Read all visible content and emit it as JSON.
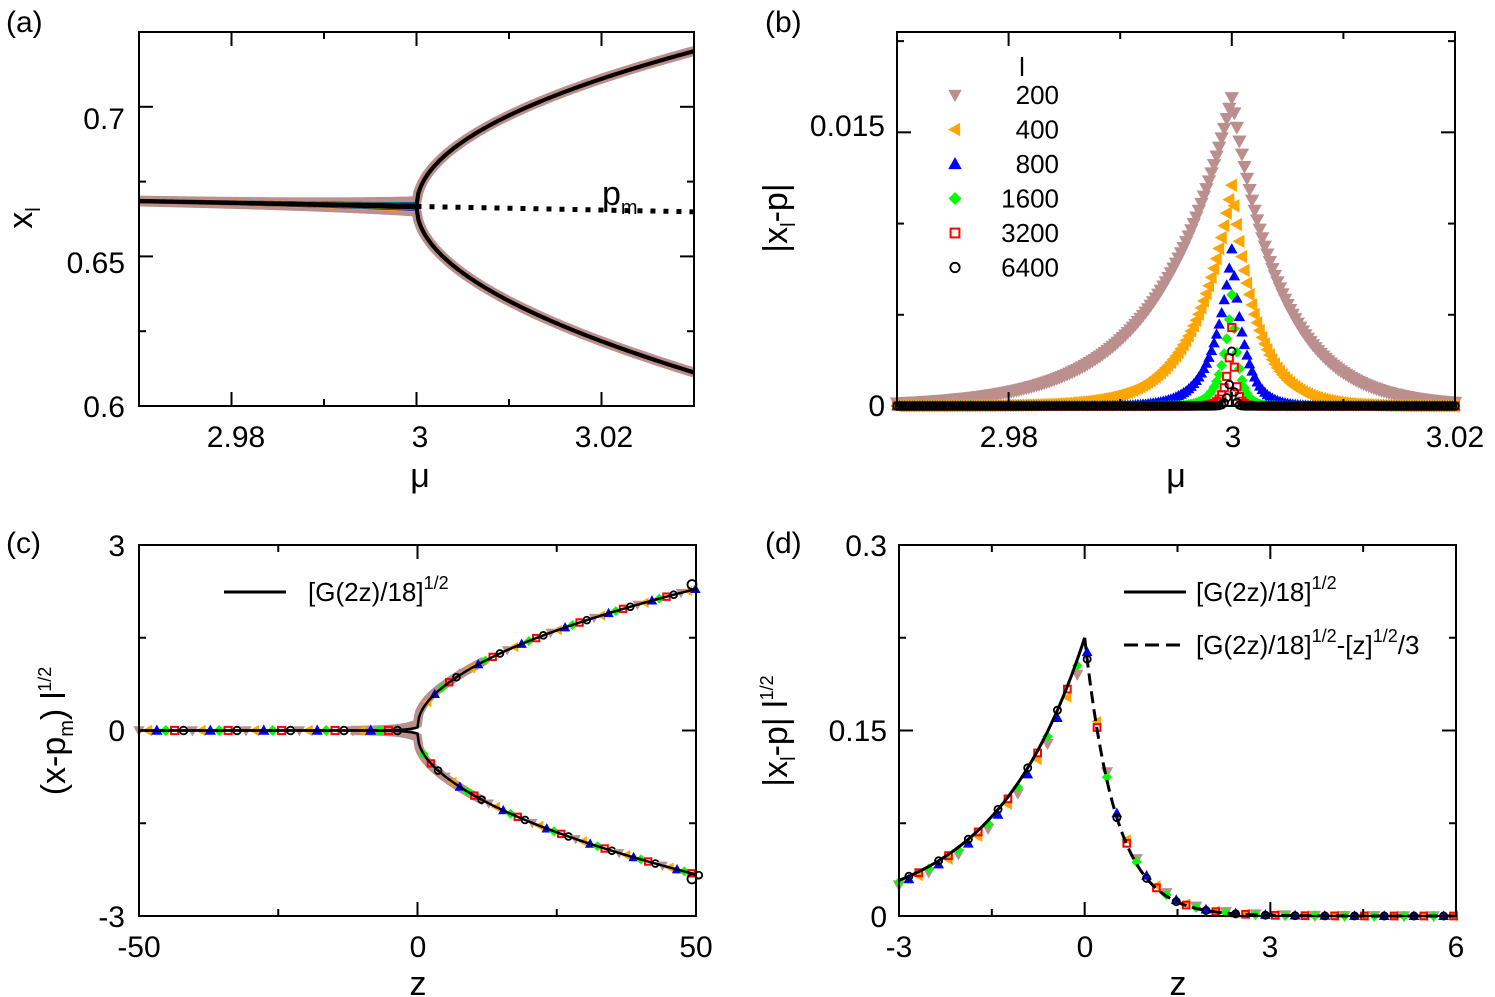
{
  "figure": {
    "panels": [
      "(a)",
      "(b)",
      "(c)",
      "(d)"
    ]
  },
  "chart_data": [
    {
      "panel": "(a)",
      "type": "scatter",
      "xlabel": "μ",
      "ylabel": "x_l",
      "xlim": [
        2.97,
        3.03
      ],
      "ylim": [
        0.6,
        0.725
      ],
      "xticks": [
        "2.98",
        "3",
        "3.02"
      ],
      "yticks": [
        "0.6",
        "0.65",
        "0.7"
      ],
      "annotation": "p_m",
      "series": [
        {
          "name": "200",
          "color": "#bc8f8f",
          "width": 0.00082
        },
        {
          "name": "400",
          "color": "#ffa500",
          "width": 0.00041
        },
        {
          "name": "800",
          "color": "#0000ff",
          "width": 0.000205
        },
        {
          "name": "1600",
          "color": "#00ff00",
          "width": 0.0001
        },
        {
          "name": "3200",
          "color": "#ff0000",
          "width": 5e-05
        },
        {
          "name": "6400",
          "color": "#000000",
          "width": 2.5e-05
        }
      ],
      "curve": {
        "mu_c": 3.0,
        "pm_at_3": 0.6667,
        "pm_slope": -0.06,
        "branch_sqrt_coeff": 0.31,
        "branch_lin": -0.06
      },
      "dotted_line": {
        "from_mu": 3.0,
        "to_mu": 3.03
      }
    },
    {
      "panel": "(b)",
      "type": "scatter",
      "xlabel": "μ",
      "ylabel": "|x_l-p|",
      "xlim": [
        2.97,
        3.02
      ],
      "ylim": [
        0,
        0.0205
      ],
      "xticks": [
        "2.98",
        "3",
        "3.02"
      ],
      "yticks": [
        "0",
        "0.015"
      ],
      "legend_title": "l",
      "legend_position": "top-left",
      "series": [
        {
          "name": "200",
          "l": 200,
          "color": "#bc8f8f",
          "marker": "triangle-down"
        },
        {
          "name": "400",
          "l": 400,
          "color": "#ffa500",
          "marker": "triangle-left"
        },
        {
          "name": "800",
          "l": 800,
          "color": "#0000ff",
          "marker": "triangle-up"
        },
        {
          "name": "1600",
          "l": 1600,
          "color": "#00ff00",
          "marker": "diamond"
        },
        {
          "name": "3200",
          "l": 3200,
          "color": "#ff0000",
          "marker": "square"
        },
        {
          "name": "6400",
          "l": 6400,
          "color": "#000000",
          "marker": "circle"
        }
      ],
      "peaks": {
        "200": 0.0169,
        "400": 0.0121,
        "800": 0.0086,
        "1600": 0.0061,
        "3200": 0.0043,
        "6400": 0.003
      }
    },
    {
      "panel": "(c)",
      "type": "scatter",
      "xlabel": "z",
      "ylabel": "(x-p_m) l^1/2",
      "xlim": [
        -50,
        50
      ],
      "ylim": [
        -3,
        3
      ],
      "xticks": [
        "-50",
        "0",
        "50"
      ],
      "yticks": [
        "-3",
        "0",
        "3"
      ],
      "legend": [
        "[G(2z)/18]^1/2"
      ],
      "legend_position": "top-left",
      "endpoints": {
        "z": 50,
        "upper": 2.36,
        "lower": -2.4
      }
    },
    {
      "panel": "(d)",
      "type": "scatter",
      "xlabel": "z",
      "ylabel": "|x_l-p| l^1/2",
      "xlim": [
        -3,
        6
      ],
      "ylim": [
        0,
        0.3
      ],
      "xticks": [
        "-3",
        "0",
        "3",
        "6"
      ],
      "yticks": [
        "0",
        "0.15",
        "0.3"
      ],
      "legend": [
        "[G(2z)/18]^1/2",
        "[G(2z)/18]^1/2-[z]^1/2/3"
      ],
      "legend_position": "top-right",
      "curve_points": {
        "z_minus3": 0.029,
        "z_minus1_5": 0.077,
        "z_0": 0.225,
        "z_0_5": 0.07,
        "z_1": 0.035,
        "z_2": 0.009,
        "z_6": 0.0
      }
    }
  ]
}
